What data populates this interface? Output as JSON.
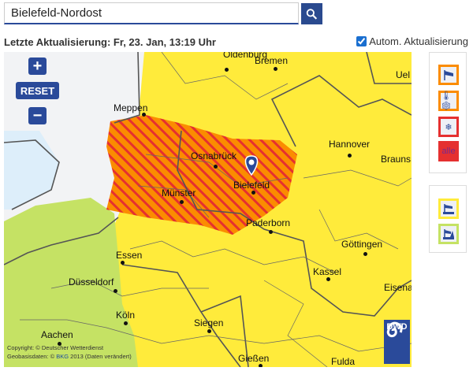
{
  "search": {
    "value": "Bielefeld-Nordost",
    "button_icon": "search-icon"
  },
  "status": {
    "last_update": "Letzte Aktualisierung: Fr, 23. Jan, 13:19 Uhr",
    "auto_update_label": "Autom. Aktualisierung",
    "auto_update_checked": true
  },
  "map": {
    "zoom_in": "+",
    "reset": "RESET",
    "zoom_out": "−",
    "cities": [
      "Oldenburg",
      "Bremen",
      "Uel",
      "Meppen",
      "Hannover",
      "Brauns",
      "Osnabrück",
      "Bielefeld",
      "Münster",
      "Paderborn",
      "Göttingen",
      "Essen",
      "Kassel",
      "Düsseldorf",
      "Eisenach",
      "Köln",
      "Siegen",
      "Aachen",
      "Gießen",
      "Fulda"
    ],
    "copyright_line1": "Copyright: © Deutscher Wetterdienst",
    "copyright_line2_prefix": "Geobasisdaten: © ",
    "copyright_link": "BKG",
    "copyright_line2_suffix": " 2013 (Daten verändert)",
    "logo_text": "DWD",
    "colors": {
      "orange": "#fb8c00",
      "red_hatch": "#e53030",
      "yellow": "#ffeb3b",
      "green": "#c5e264",
      "grey": "#f2f3f5",
      "water": "#ddeefa"
    }
  },
  "filters": {
    "group1": [
      {
        "icon": "wind-icon",
        "border": "#fb8c00"
      },
      {
        "icon": "frost-icon",
        "border": "#fb8c00"
      },
      {
        "icon": "ice-road-icon",
        "border": "#e53030"
      },
      {
        "label": "alle",
        "color": "#e53030"
      }
    ],
    "group2": [
      {
        "icon": "coast-wind-icon",
        "border": "#ffeb3b"
      },
      {
        "icon": "sea-wind-icon",
        "border": "#c5e264"
      }
    ]
  }
}
